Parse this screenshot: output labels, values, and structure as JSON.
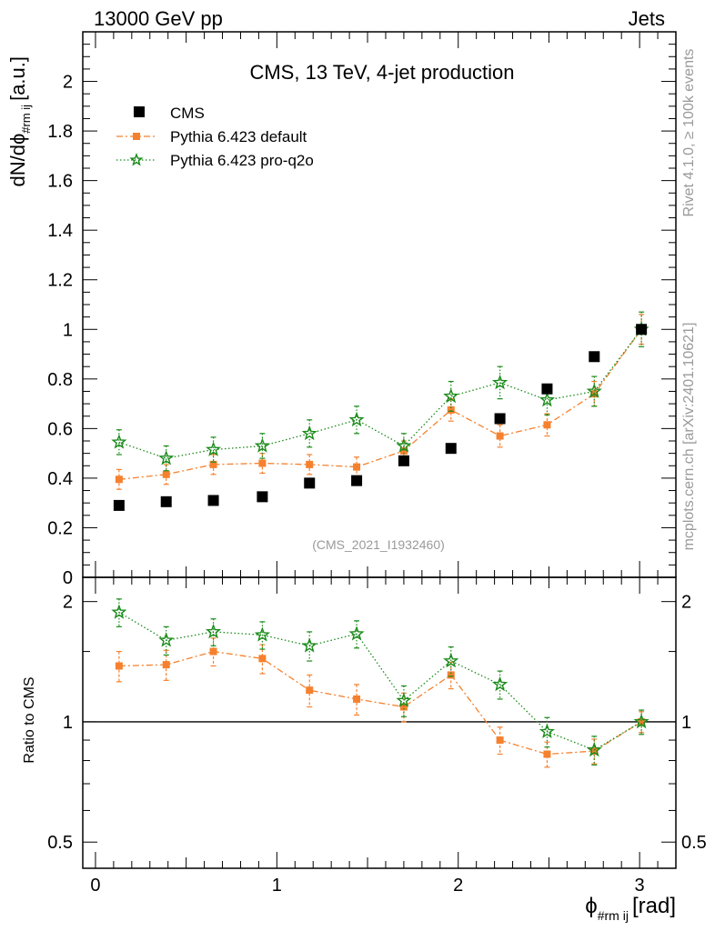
{
  "header": {
    "left": "13000 GeV pp",
    "right": "Jets"
  },
  "side_labels": {
    "rivet": "Rivet 4.1.0, ≥ 100k events",
    "mcplots": "mcplots.cern.ch [arXiv:2401.10621]"
  },
  "colors": {
    "cms": "#000000",
    "default": "#f5812f",
    "proq2o": "#1a8a1a",
    "watermark": "#9a9a9a"
  },
  "chart_data": [
    {
      "type": "scatter",
      "title": "CMS, 13 TeV, 4-jet production",
      "analysis_id": "(CMS_2021_I1932460)",
      "ylabel_main": "dN/dϕ",
      "ylabel_sub": "#rm ij",
      "ylabel_unit": "[a.u.]",
      "xlabel_main": "ϕ",
      "xlabel_sub": "#rm ij",
      "xlabel_unit": "[rad]",
      "xlim": [
        -0.07,
        3.2
      ],
      "ylim": [
        0,
        2.2
      ],
      "yticks": [
        0,
        0.2,
        0.4,
        0.6,
        0.8,
        1,
        1.2,
        1.4,
        1.6,
        1.8,
        2
      ],
      "ytick_labels": [
        "0",
        "0.2",
        "0.4",
        "0.6",
        "0.8",
        "1",
        "1.2",
        "1.4",
        "1.6",
        "1.8",
        "2"
      ],
      "legend": [
        "CMS",
        "Pythia 6.423 default",
        "Pythia 6.423 pro-q2o"
      ],
      "legend_position": "top-left",
      "x": [
        0.13,
        0.39,
        0.65,
        0.92,
        1.18,
        1.44,
        1.7,
        1.96,
        2.23,
        2.49,
        2.75,
        3.01
      ],
      "series": [
        {
          "name": "CMS",
          "style": "square",
          "values": [
            0.29,
            0.305,
            0.31,
            0.325,
            0.38,
            0.39,
            0.47,
            0.52,
            0.64,
            0.76,
            0.89,
            1.0
          ],
          "errors": [
            0.008,
            0.008,
            0.008,
            0.008,
            0.01,
            0.01,
            0.012,
            0.012,
            0.012,
            0.014,
            0.015,
            0.02
          ]
        },
        {
          "name": "Pythia 6.423 default",
          "style": "square-dashdot",
          "values": [
            0.395,
            0.415,
            0.455,
            0.46,
            0.455,
            0.445,
            0.51,
            0.675,
            0.57,
            0.615,
            0.74,
            1.0
          ],
          "errors": [
            0.04,
            0.04,
            0.04,
            0.04,
            0.04,
            0.04,
            0.04,
            0.045,
            0.045,
            0.045,
            0.05,
            0.06
          ]
        },
        {
          "name": "Pythia 6.423 pro-q2o",
          "style": "star-dotted",
          "values": [
            0.545,
            0.48,
            0.515,
            0.53,
            0.58,
            0.635,
            0.53,
            0.73,
            0.785,
            0.715,
            0.75,
            1.0
          ],
          "errors": [
            0.05,
            0.05,
            0.05,
            0.05,
            0.055,
            0.055,
            0.05,
            0.06,
            0.065,
            0.06,
            0.06,
            0.07
          ]
        }
      ]
    },
    {
      "type": "scatter",
      "title": "",
      "ylabel": "Ratio to CMS",
      "yscale": "log",
      "ylim": [
        0.43,
        2.3
      ],
      "yticks": [
        0.5,
        1,
        2
      ],
      "ytick_labels": [
        "0.5",
        "1",
        "2"
      ],
      "xticks": [
        0,
        1,
        2,
        3
      ],
      "xtick_labels": [
        "0",
        "1",
        "2",
        "3"
      ],
      "reference_line": 1,
      "x": [
        0.13,
        0.39,
        0.65,
        0.92,
        1.18,
        1.44,
        1.7,
        1.96,
        2.23,
        2.49,
        2.75,
        3.01
      ],
      "series": [
        {
          "name": "Pythia 6.423 default",
          "style": "square-dashdot",
          "values": [
            1.38,
            1.39,
            1.5,
            1.44,
            1.2,
            1.14,
            1.09,
            1.31,
            0.9,
            0.83,
            0.845,
            1.0
          ],
          "errors": [
            0.12,
            0.12,
            0.12,
            0.12,
            0.11,
            0.1,
            0.09,
            0.1,
            0.07,
            0.06,
            0.06,
            0.06
          ]
        },
        {
          "name": "Pythia 6.423 pro-q2o",
          "style": "star-dotted",
          "values": [
            1.88,
            1.6,
            1.68,
            1.65,
            1.55,
            1.66,
            1.13,
            1.42,
            1.24,
            0.945,
            0.85,
            1.0
          ],
          "errors": [
            0.15,
            0.13,
            0.13,
            0.13,
            0.13,
            0.13,
            0.1,
            0.12,
            0.1,
            0.08,
            0.07,
            0.07
          ]
        }
      ]
    }
  ]
}
